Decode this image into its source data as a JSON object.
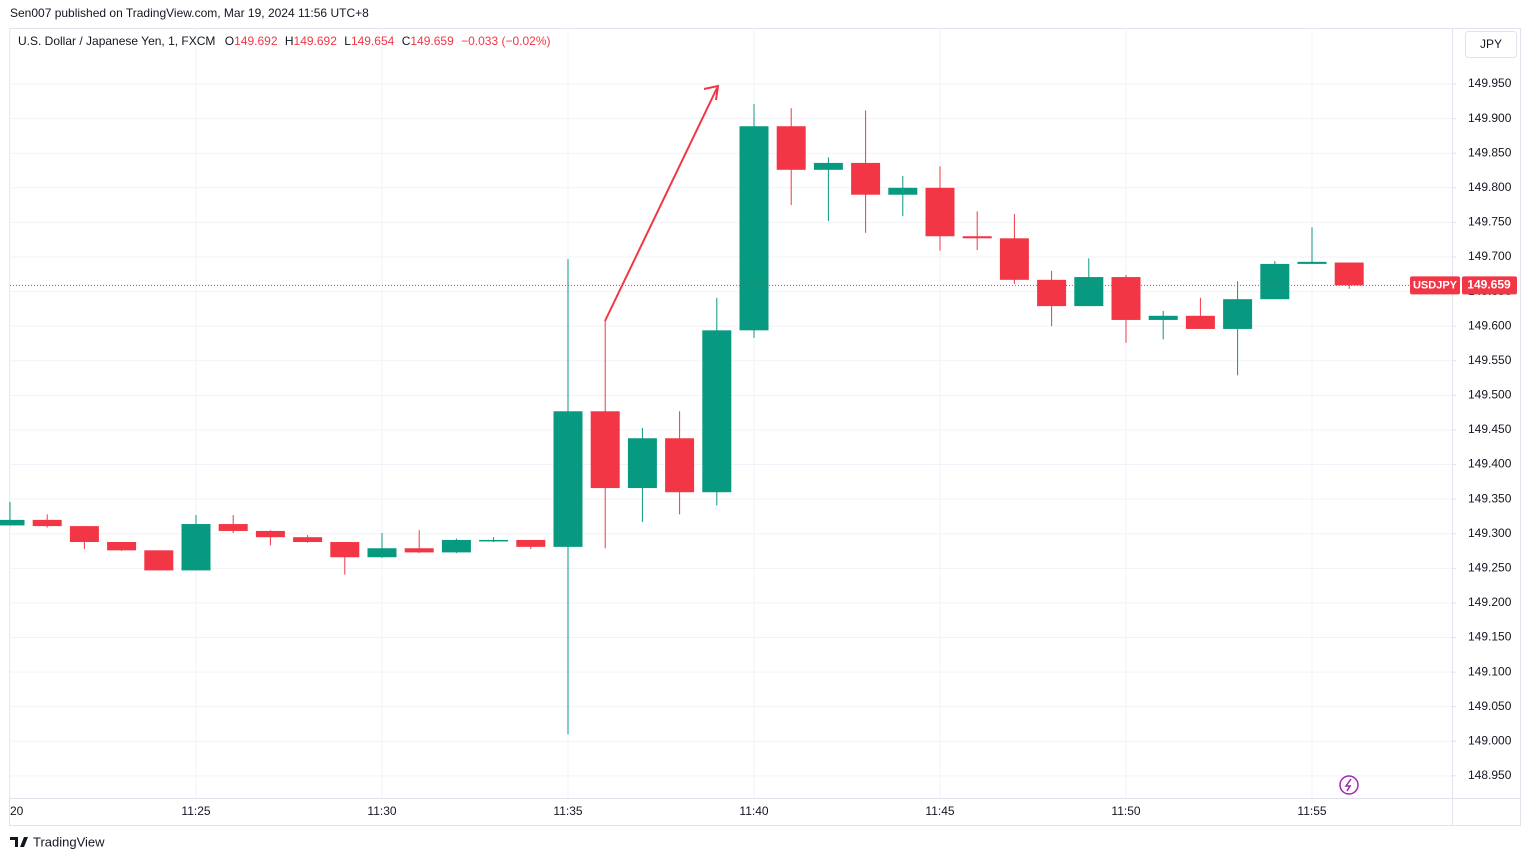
{
  "header": {
    "publisher": "Sen007 published on TradingView.com, Mar 19, 2024 11:56 UTC+8",
    "brand": "TradingView"
  },
  "chart_data": {
    "type": "candlestick",
    "title": "U.S. Dollar / Japanese Yen, 1, FXCM",
    "ohlc_header": {
      "open_label": "O",
      "open": 149.692,
      "high_label": "H",
      "high": 149.692,
      "low_label": "L",
      "low": 149.654,
      "close_label": "C",
      "close": 149.659,
      "change": "−0.033 (−0.02%)"
    },
    "currency_button": "JPY",
    "symbol": "USDJPY",
    "last_price": 149.659,
    "categories": [
      "20",
      null,
      null,
      null,
      null,
      "11:25",
      null,
      null,
      null,
      null,
      "11:30",
      null,
      null,
      null,
      null,
      "11:35",
      null,
      null,
      null,
      null,
      "11:40",
      null,
      null,
      null,
      null,
      "11:45",
      null,
      null,
      null,
      null,
      "11:50",
      null,
      null,
      null,
      null,
      "11:55",
      null
    ],
    "open": [
      149.312,
      149.32,
      149.311,
      149.288,
      149.276,
      149.247,
      149.314,
      149.304,
      149.295,
      149.288,
      149.266,
      149.279,
      149.273,
      149.289,
      149.291,
      149.281,
      149.477,
      149.366,
      149.438,
      149.36,
      149.594,
      149.889,
      149.826,
      149.836,
      149.79,
      149.8,
      149.73,
      149.727,
      149.667,
      149.629,
      149.671,
      149.609,
      149.615,
      149.596,
      149.639,
      149.69,
      149.692
    ],
    "high": [
      149.346,
      149.328,
      149.311,
      149.288,
      149.276,
      149.327,
      149.327,
      149.305,
      149.298,
      149.288,
      149.301,
      149.305,
      149.293,
      149.295,
      149.291,
      149.697,
      149.609,
      149.453,
      149.477,
      149.641,
      149.921,
      149.915,
      149.844,
      149.912,
      149.817,
      149.831,
      149.766,
      149.762,
      149.68,
      149.698,
      149.674,
      149.622,
      149.641,
      149.665,
      149.694,
      149.743,
      149.692
    ],
    "low": [
      149.312,
      149.309,
      149.278,
      149.275,
      149.247,
      149.247,
      149.301,
      149.283,
      149.287,
      149.241,
      149.265,
      149.272,
      149.272,
      149.288,
      149.278,
      149.01,
      149.279,
      149.317,
      149.328,
      149.341,
      149.583,
      149.775,
      149.752,
      149.735,
      149.759,
      149.709,
      149.71,
      149.661,
      149.6,
      149.629,
      149.576,
      149.581,
      149.596,
      149.529,
      149.639,
      149.69,
      149.654
    ],
    "close": [
      149.32,
      149.311,
      149.288,
      149.276,
      149.247,
      149.314,
      149.304,
      149.295,
      149.288,
      149.266,
      149.279,
      149.273,
      149.291,
      149.291,
      149.281,
      149.477,
      149.366,
      149.438,
      149.36,
      149.594,
      149.889,
      149.826,
      149.836,
      149.79,
      149.8,
      149.73,
      149.727,
      149.667,
      149.629,
      149.671,
      149.609,
      149.615,
      149.596,
      149.639,
      149.69,
      149.693,
      149.659
    ],
    "up_color": "#089981",
    "down_color": "#f23645",
    "ylim": [
      148.918,
      150.031
    ],
    "yticks": [
      {
        "value": 148.95,
        "label": "148.950"
      },
      {
        "value": 149.0,
        "label": "149.000"
      },
      {
        "value": 149.05,
        "label": "149.050"
      },
      {
        "value": 149.1,
        "label": "149.100"
      },
      {
        "value": 149.15,
        "label": "149.150"
      },
      {
        "value": 149.2,
        "label": "149.200"
      },
      {
        "value": 149.25,
        "label": "149.250"
      },
      {
        "value": 149.3,
        "label": "149.300"
      },
      {
        "value": 149.35,
        "label": "149.350"
      },
      {
        "value": 149.4,
        "label": "149.400"
      },
      {
        "value": 149.45,
        "label": "149.450"
      },
      {
        "value": 149.5,
        "label": "149.500"
      },
      {
        "value": 149.55,
        "label": "149.550"
      },
      {
        "value": 149.6,
        "label": "149.600"
      },
      {
        "value": 149.65,
        "label": "149.650"
      },
      {
        "value": 149.7,
        "label": "149.700"
      },
      {
        "value": 149.75,
        "label": "149.750"
      },
      {
        "value": 149.8,
        "label": "149.800"
      },
      {
        "value": 149.85,
        "label": "149.850"
      },
      {
        "value": 149.9,
        "label": "149.900"
      },
      {
        "value": 149.95,
        "label": "149.950"
      }
    ],
    "grid": true
  }
}
